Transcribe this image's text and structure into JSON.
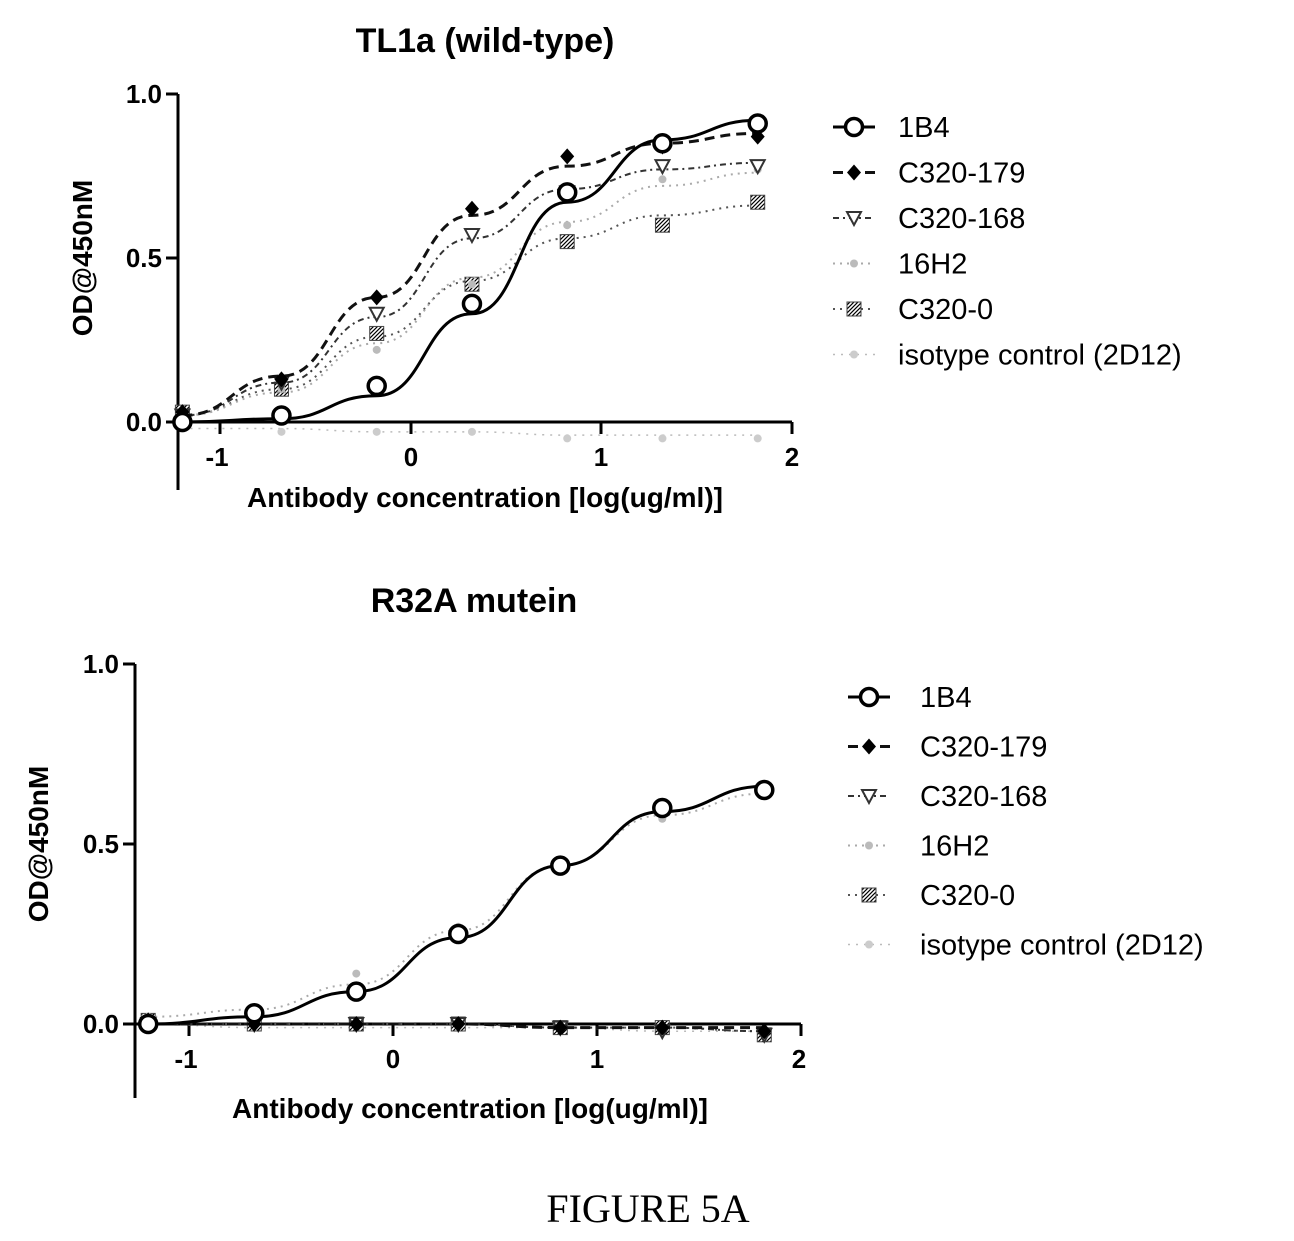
{
  "figure_caption": "FIGURE 5A",
  "chart_data": [
    {
      "type": "line",
      "title": "TL1a (wild-type)",
      "xlabel": "Antibody concentration [log(ug/ml)]",
      "ylabel": "OD@450nM",
      "xlim": [
        -1.2,
        2.0
      ],
      "ylim": [
        -0.2,
        1.0
      ],
      "x_ticks": [
        "-1",
        "0",
        "1",
        "2"
      ],
      "y_ticks": [
        "0.0",
        "0.5",
        "1.0"
      ],
      "grid": false,
      "legend_position": "right",
      "x": [
        -1.2,
        -0.68,
        -0.18,
        0.32,
        0.82,
        1.32,
        1.82
      ],
      "series": [
        {
          "name": "1B4",
          "marker": "open-circle",
          "line": "solid",
          "color": "#000000",
          "values": [
            0.0,
            0.02,
            0.11,
            0.36,
            0.7,
            0.85,
            0.91
          ],
          "fit": [
            0.0,
            0.01,
            0.08,
            0.33,
            0.67,
            0.86,
            0.92
          ]
        },
        {
          "name": "C320-179",
          "marker": "diamond",
          "line": "dashed",
          "color": "#111111",
          "values": [
            0.03,
            0.13,
            0.38,
            0.65,
            0.81,
            0.84,
            0.87
          ],
          "fit": [
            0.02,
            0.14,
            0.38,
            0.63,
            0.78,
            0.85,
            0.88
          ]
        },
        {
          "name": "C320-168",
          "marker": "triangle-down",
          "line": "dash-dot",
          "color": "#333333",
          "values": [
            0.02,
            0.12,
            0.33,
            0.57,
            0.7,
            0.78,
            0.78
          ],
          "fit": [
            0.02,
            0.12,
            0.32,
            0.56,
            0.71,
            0.77,
            0.79
          ]
        },
        {
          "name": "16H2",
          "marker": "small-dot",
          "line": "dotted",
          "color": "#aaaaaa",
          "values": [
            0.02,
            0.1,
            0.22,
            0.42,
            0.6,
            0.74,
            0.77
          ],
          "fit": [
            0.02,
            0.09,
            0.24,
            0.44,
            0.61,
            0.72,
            0.76
          ]
        },
        {
          "name": "C320-0",
          "marker": "hatched-square",
          "line": "dotted",
          "color": "#555555",
          "values": [
            0.03,
            0.1,
            0.27,
            0.42,
            0.55,
            0.6,
            0.67
          ],
          "fit": [
            0.02,
            0.1,
            0.26,
            0.43,
            0.56,
            0.63,
            0.66
          ]
        },
        {
          "name": "isotype control (2D12)",
          "marker": "faint-dot",
          "line": "faint-dotted",
          "color": "#bbbbbb",
          "values": [
            -0.02,
            -0.03,
            -0.03,
            -0.03,
            -0.05,
            -0.05,
            -0.05
          ],
          "fit": [
            -0.02,
            -0.02,
            -0.03,
            -0.03,
            -0.04,
            -0.04,
            -0.04
          ]
        }
      ]
    },
    {
      "type": "line",
      "title": "R32A mutein",
      "xlabel": "Antibody concentration [log(ug/ml)]",
      "ylabel": "OD@450nM",
      "xlim": [
        -1.2,
        2.0
      ],
      "ylim": [
        -0.2,
        1.0
      ],
      "x_ticks": [
        "-1",
        "0",
        "1",
        "2"
      ],
      "y_ticks": [
        "0.0",
        "0.5",
        "1.0"
      ],
      "grid": false,
      "legend_position": "right",
      "x": [
        -1.2,
        -0.68,
        -0.18,
        0.32,
        0.82,
        1.32,
        1.82
      ],
      "series": [
        {
          "name": "1B4",
          "marker": "open-circle",
          "line": "solid",
          "color": "#000000",
          "values": [
            0.0,
            0.03,
            0.09,
            0.25,
            0.44,
            0.6,
            0.65
          ],
          "fit": [
            0.0,
            0.02,
            0.09,
            0.24,
            0.44,
            0.59,
            0.66
          ]
        },
        {
          "name": "C320-179",
          "marker": "diamond",
          "line": "dashed",
          "color": "#111111",
          "values": [
            0.01,
            0.0,
            0.0,
            0.0,
            -0.01,
            -0.01,
            -0.02
          ],
          "fit": [
            0.0,
            0.0,
            0.0,
            0.0,
            -0.01,
            -0.01,
            -0.01
          ]
        },
        {
          "name": "C320-168",
          "marker": "triangle-down",
          "line": "dash-dot",
          "color": "#333333",
          "values": [
            0.0,
            0.0,
            0.0,
            0.0,
            -0.01,
            -0.02,
            -0.03
          ],
          "fit": [
            0.0,
            0.0,
            0.0,
            0.0,
            -0.01,
            -0.01,
            -0.02
          ]
        },
        {
          "name": "16H2",
          "marker": "small-dot",
          "line": "dotted",
          "color": "#aaaaaa",
          "values": [
            0.02,
            0.04,
            0.14,
            0.27,
            0.45,
            0.57,
            0.64
          ],
          "fit": [
            0.02,
            0.04,
            0.11,
            0.26,
            0.44,
            0.58,
            0.64
          ]
        },
        {
          "name": "C320-0",
          "marker": "hatched-square",
          "line": "dotted",
          "color": "#555555",
          "values": [
            0.01,
            0.0,
            0.0,
            0.0,
            -0.01,
            -0.01,
            -0.03
          ],
          "fit": [
            0.0,
            0.0,
            0.0,
            0.0,
            -0.01,
            -0.01,
            -0.02
          ]
        },
        {
          "name": "isotype control (2D12)",
          "marker": "faint-dot",
          "line": "faint-dotted",
          "color": "#bbbbbb",
          "values": [
            0.0,
            -0.01,
            -0.01,
            -0.01,
            -0.02,
            -0.02,
            -0.02
          ],
          "fit": [
            0.0,
            -0.01,
            -0.01,
            -0.01,
            -0.01,
            -0.02,
            -0.02
          ]
        }
      ]
    }
  ]
}
